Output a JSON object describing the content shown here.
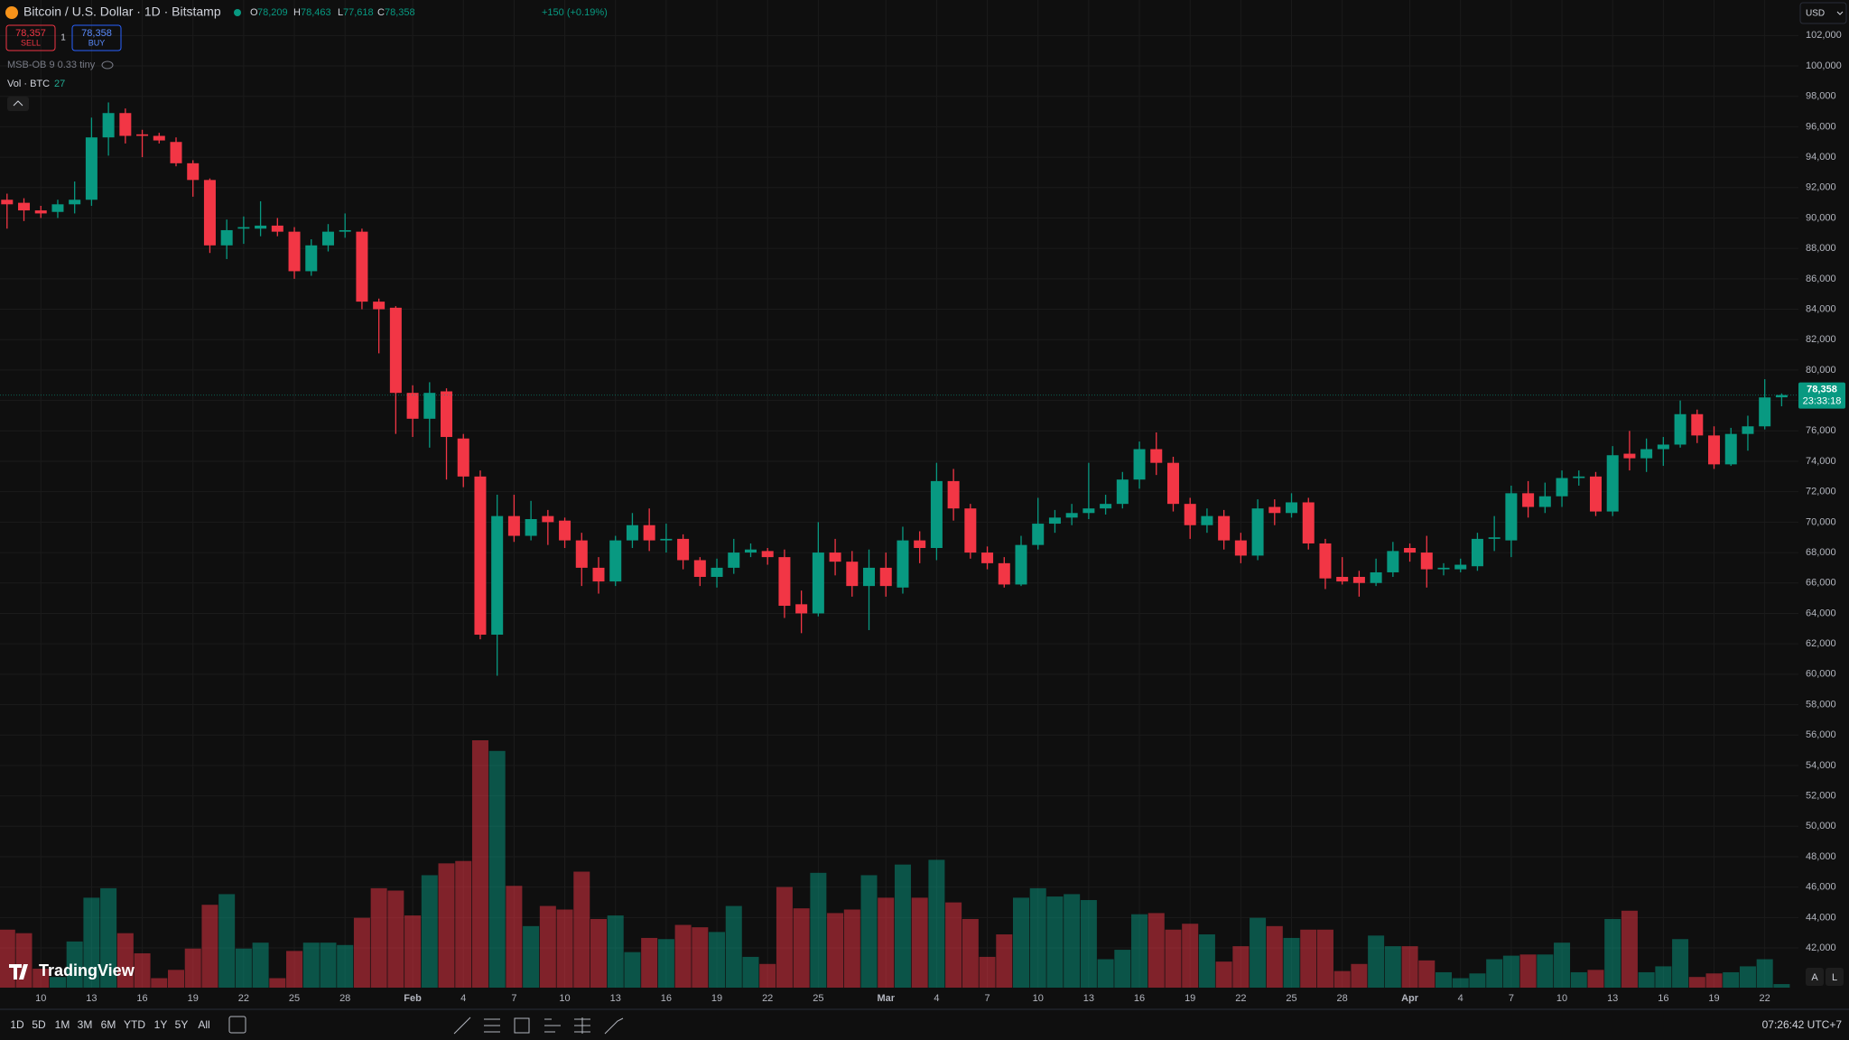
{
  "header": {
    "symbol": "Bitcoin / U.S. Dollar · 1D · Bitstamp",
    "ohlc": [
      {
        "key": "O",
        "value": "78,209"
      },
      {
        "key": "H",
        "value": "78,463"
      },
      {
        "key": "L",
        "value": "77,618"
      },
      {
        "key": "C",
        "value": "78,358"
      }
    ],
    "change": "+150 (+0.19%)"
  },
  "trade": {
    "sell_price": "78,357",
    "sell": "SELL",
    "spread": "1",
    "buy_price": "78,358",
    "buy": "BUY"
  },
  "indicator": "MSB-OB 9 0.33 tiny",
  "volume_legend": "Vol · BTC",
  "chart_data": {
    "type": "candlestick",
    "x": [
      "01-08",
      "01-09",
      "01-10",
      "01-11",
      "01-12",
      "01-13",
      "01-14",
      "01-15",
      "01-16",
      "01-17",
      "01-18",
      "01-19",
      "01-20",
      "01-21",
      "01-22",
      "01-23",
      "01-24",
      "01-25",
      "01-26",
      "01-27",
      "01-28",
      "01-29",
      "01-30",
      "01-31",
      "02-01",
      "02-02",
      "02-03",
      "02-04",
      "02-05",
      "02-06",
      "02-07",
      "02-08",
      "02-09",
      "02-10",
      "02-11",
      "02-12",
      "02-13",
      "02-14",
      "02-15",
      "02-16",
      "02-17",
      "02-18",
      "02-19",
      "02-20",
      "02-21",
      "02-22",
      "02-23",
      "02-24",
      "02-25",
      "02-26",
      "02-27",
      "02-28",
      "03-01",
      "03-02",
      "03-03",
      "03-04",
      "03-05",
      "03-06",
      "03-07",
      "03-08",
      "03-09",
      "03-10",
      "03-11",
      "03-12",
      "03-13",
      "03-14",
      "03-15",
      "03-16",
      "03-17",
      "03-18",
      "03-19",
      "03-20",
      "03-21",
      "03-22",
      "03-23",
      "03-24",
      "03-25",
      "03-26",
      "03-27",
      "03-28",
      "03-29",
      "03-30",
      "03-31",
      "04-01",
      "04-02",
      "04-03",
      "04-04",
      "04-05",
      "04-06",
      "04-07",
      "04-08",
      "04-09",
      "04-10",
      "04-11",
      "04-12",
      "04-13",
      "04-14",
      "04-15",
      "04-16",
      "04-17",
      "04-18",
      "04-19",
      "04-20",
      "04-21",
      "04-22",
      "04-23"
    ],
    "open": [
      91200,
      91000,
      90500,
      90400,
      90900,
      91200,
      95300,
      96900,
      95500,
      95400,
      95000,
      93600,
      92500,
      88200,
      89300,
      89300,
      89500,
      89100,
      86500,
      88200,
      89100,
      89100,
      84500,
      84100,
      78500,
      76800,
      78600,
      75500,
      73000,
      62600,
      70400,
      69100,
      70400,
      70100,
      68800,
      67000,
      66100,
      68800,
      69800,
      68800,
      68900,
      67500,
      66400,
      67000,
      68000,
      68100,
      67700,
      64600,
      64000,
      68000,
      67400,
      65800,
      67000,
      65700,
      68800,
      68300,
      72700,
      70900,
      68000,
      67300,
      65900,
      68500,
      69900,
      70300,
      70600,
      70900,
      71200,
      72800,
      74800,
      73900,
      71200,
      69800,
      70400,
      68800,
      67800,
      71000,
      70600,
      71300,
      68600,
      66400,
      66400,
      66000,
      66700,
      68300,
      68000,
      66900,
      66900,
      67100,
      68900,
      68800,
      71900,
      71000,
      71700,
      72900,
      73000,
      70700,
      74500,
      74200,
      74800,
      75100,
      77100,
      75700,
      73800,
      75800,
      76300,
      78209
    ],
    "high": [
      91600,
      91300,
      90800,
      91200,
      92400,
      96600,
      97600,
      97200,
      95800,
      95600,
      95300,
      93800,
      92600,
      89900,
      90100,
      91100,
      90000,
      89400,
      88600,
      89600,
      90300,
      89300,
      84700,
      84200,
      79000,
      79200,
      78800,
      75800,
      73400,
      71800,
      71800,
      71400,
      70800,
      70300,
      69300,
      67700,
      69100,
      70600,
      70900,
      69900,
      69200,
      67700,
      67600,
      68900,
      68600,
      68300,
      68200,
      65500,
      70000,
      68900,
      68100,
      68200,
      68000,
      69700,
      69400,
      73900,
      73500,
      71200,
      68400,
      67700,
      69100,
      71600,
      70800,
      71200,
      73900,
      71800,
      73300,
      75300,
      75900,
      74300,
      71600,
      70900,
      70800,
      69300,
      71500,
      71500,
      71900,
      71600,
      68900,
      67700,
      66800,
      67600,
      68700,
      68600,
      69100,
      67300,
      67600,
      69300,
      70400,
      72400,
      72700,
      72600,
      73400,
      73400,
      73300,
      75000,
      76000,
      75500,
      75600,
      78000,
      77400,
      76300,
      76200,
      77000,
      79400,
      78463
    ],
    "low": [
      89300,
      89800,
      90000,
      90000,
      90300,
      90800,
      94100,
      94900,
      94000,
      94900,
      93400,
      91400,
      87700,
      87300,
      88300,
      88800,
      88800,
      86000,
      86200,
      87800,
      88700,
      84000,
      81100,
      75800,
      75600,
      74900,
      72800,
      72300,
      62300,
      59900,
      68700,
      68800,
      68500,
      68300,
      65800,
      65300,
      65800,
      68300,
      68100,
      68000,
      66900,
      65800,
      65700,
      66600,
      67700,
      67200,
      63700,
      62700,
      63800,
      66500,
      65100,
      62900,
      65100,
      65300,
      67300,
      67500,
      70100,
      67600,
      66900,
      65700,
      65800,
      68200,
      69300,
      69800,
      70200,
      70500,
      70900,
      72200,
      73100,
      70700,
      68900,
      69300,
      68200,
      67300,
      67500,
      69800,
      70300,
      68200,
      65600,
      65900,
      65100,
      65800,
      66400,
      67400,
      65700,
      66500,
      66700,
      66800,
      68100,
      67700,
      70300,
      70600,
      71000,
      72400,
      70400,
      70400,
      73400,
      73300,
      73700,
      74900,
      75200,
      73500,
      73700,
      74700,
      76100,
      77618
    ],
    "close": [
      90900,
      90500,
      90300,
      90900,
      91200,
      95300,
      96900,
      95400,
      95400,
      95100,
      93600,
      92500,
      88200,
      89200,
      89400,
      89500,
      89100,
      86500,
      88200,
      89100,
      89200,
      84500,
      84000,
      78500,
      76800,
      78500,
      75600,
      73000,
      62600,
      70400,
      69100,
      70200,
      70000,
      68800,
      67000,
      66100,
      68800,
      69800,
      68800,
      68900,
      67500,
      66400,
      67000,
      68000,
      68200,
      67700,
      64500,
      64000,
      68000,
      67400,
      65800,
      67000,
      65800,
      68800,
      68300,
      72700,
      70900,
      68000,
      67300,
      65900,
      68500,
      69900,
      70300,
      70600,
      70900,
      71200,
      72800,
      74800,
      73900,
      71200,
      69800,
      70400,
      68800,
      67800,
      70900,
      70600,
      71300,
      68600,
      66300,
      66100,
      66000,
      66700,
      68100,
      68000,
      66900,
      67000,
      67200,
      68900,
      69000,
      71900,
      71000,
      71700,
      72900,
      73000,
      70700,
      74400,
      74200,
      74800,
      75100,
      77100,
      75700,
      73800,
      75800,
      76300,
      78200,
      78358
    ],
    "volume": [
      441,
      414,
      144,
      81,
      351,
      684,
      756,
      414,
      261,
      72,
      135,
      297,
      630,
      711,
      297,
      342,
      72,
      279,
      342,
      342,
      324,
      531,
      756,
      738,
      549,
      855,
      945,
      963,
      1881,
      1800,
      774,
      468,
      621,
      594,
      882,
      522,
      549,
      270,
      378,
      369,
      477,
      459,
      423,
      621,
      234,
      180,
      765,
      603,
      873,
      567,
      594,
      855,
      684,
      936,
      684,
      972,
      648,
      522,
      234,
      405,
      684,
      756,
      693,
      711,
      666,
      216,
      288,
      558,
      567,
      441,
      486,
      405,
      198,
      315,
      531,
      468,
      378,
      441,
      441,
      126,
      180,
      396,
      315,
      315,
      207,
      117,
      72,
      108,
      216,
      243,
      252,
      252,
      342,
      117,
      135,
      522,
      585,
      117,
      162,
      369,
      81,
      108,
      117,
      162,
      216,
      27
    ],
    "colors": {
      "up": "#089981",
      "down": "#f23645"
    },
    "ylim": [
      39390,
      104335
    ],
    "yticks": [
      {
        "value": 42000,
        "label": "42,000"
      },
      {
        "value": 44000,
        "label": "44,000"
      },
      {
        "value": 46000,
        "label": "46,000"
      },
      {
        "value": 48000,
        "label": "48,000"
      },
      {
        "value": 50000,
        "label": "50,000"
      },
      {
        "value": 52000,
        "label": "52,000"
      },
      {
        "value": 54000,
        "label": "54,000"
      },
      {
        "value": 56000,
        "label": "56,000"
      },
      {
        "value": 58000,
        "label": "58,000"
      },
      {
        "value": 60000,
        "label": "60,000"
      },
      {
        "value": 62000,
        "label": "62,000"
      },
      {
        "value": 64000,
        "label": "64,000"
      },
      {
        "value": 66000,
        "label": "66,000"
      },
      {
        "value": 68000,
        "label": "68,000"
      },
      {
        "value": 70000,
        "label": "70,000"
      },
      {
        "value": 72000,
        "label": "72,000"
      },
      {
        "value": 74000,
        "label": "74,000"
      },
      {
        "value": 76000,
        "label": "76,000"
      },
      {
        "value": 78000,
        "label": "78,000"
      },
      {
        "value": 80000,
        "label": "80,000"
      },
      {
        "value": 82000,
        "label": "82,000"
      },
      {
        "value": 84000,
        "label": "84,000"
      },
      {
        "value": 86000,
        "label": "86,000"
      },
      {
        "value": 88000,
        "label": "88,000"
      },
      {
        "value": 90000,
        "label": "90,000"
      },
      {
        "value": 92000,
        "label": "92,000"
      },
      {
        "value": 94000,
        "label": "94,000"
      },
      {
        "value": 96000,
        "label": "96,000"
      },
      {
        "value": 98000,
        "label": "98,000"
      },
      {
        "value": 100000,
        "label": "100,000"
      },
      {
        "value": 102000,
        "label": "102,000"
      }
    ],
    "xticks": [
      {
        "value": "01-10",
        "label": "10"
      },
      {
        "value": "01-13",
        "label": "13"
      },
      {
        "value": "01-16",
        "label": "16"
      },
      {
        "value": "01-19",
        "label": "19"
      },
      {
        "value": "01-22",
        "label": "22"
      },
      {
        "value": "01-25",
        "label": "25"
      },
      {
        "value": "01-28",
        "label": "28"
      },
      {
        "value": "02-01",
        "label": "Feb"
      },
      {
        "value": "02-04",
        "label": "4"
      },
      {
        "value": "02-07",
        "label": "7"
      },
      {
        "value": "02-10",
        "label": "10"
      },
      {
        "value": "02-13",
        "label": "13"
      },
      {
        "value": "02-16",
        "label": "16"
      },
      {
        "value": "02-19",
        "label": "19"
      },
      {
        "value": "02-22",
        "label": "22"
      },
      {
        "value": "02-25",
        "label": "25"
      },
      {
        "value": "03-01",
        "label": "Mar"
      },
      {
        "value": "03-04",
        "label": "4"
      },
      {
        "value": "03-07",
        "label": "7"
      },
      {
        "value": "03-10",
        "label": "10"
      },
      {
        "value": "03-13",
        "label": "13"
      },
      {
        "value": "03-16",
        "label": "16"
      },
      {
        "value": "03-19",
        "label": "19"
      },
      {
        "value": "03-22",
        "label": "22"
      },
      {
        "value": "03-25",
        "label": "25"
      },
      {
        "value": "03-28",
        "label": "28"
      },
      {
        "value": "04-01",
        "label": "Apr"
      },
      {
        "value": "04-04",
        "label": "4"
      },
      {
        "value": "04-07",
        "label": "7"
      },
      {
        "value": "04-10",
        "label": "10"
      },
      {
        "value": "04-13",
        "label": "13"
      },
      {
        "value": "04-16",
        "label": "16"
      },
      {
        "value": "04-19",
        "label": "19"
      },
      {
        "value": "04-22",
        "label": "22"
      }
    ],
    "last_price": {
      "value": 78358,
      "label": "78,358"
    },
    "countdown": "23:33:18",
    "currency": "USD",
    "grid": true
  },
  "footer": {
    "brand": "TradingView",
    "ranges": [
      "1D",
      "5D",
      "1M",
      "3M",
      "6M",
      "YTD",
      "1Y",
      "5Y",
      "All"
    ],
    "clock": "07:26:42 UTC+7",
    "scale_buttons": [
      "A",
      "L"
    ]
  }
}
